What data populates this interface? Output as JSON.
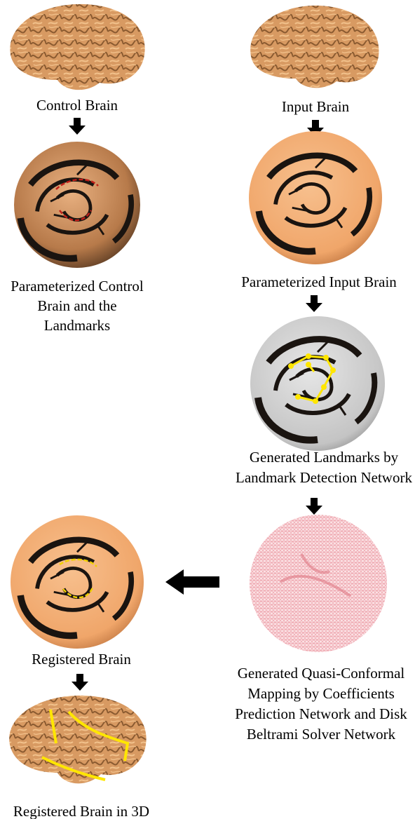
{
  "nodes": [
    {
      "lines": [
        "Control Brain"
      ]
    },
    {
      "lines": [
        "Input Brain"
      ]
    },
    {
      "lines": [
        "Parameterized Control",
        "Brain and the",
        "Landmarks"
      ]
    },
    {
      "lines": [
        "Parameterized Input Brain"
      ]
    },
    {
      "lines": [
        "Generated Landmarks by",
        "Landmark Detection Network"
      ]
    },
    {
      "lines": [
        "Generated Quasi-Conformal",
        "Mapping by Coefficients",
        "Prediction Network and Disk",
        "Beltrami Solver Network"
      ]
    },
    {
      "lines": [
        "Registered Brain"
      ]
    },
    {
      "lines": [
        "Registered Brain in 3D"
      ]
    }
  ]
}
